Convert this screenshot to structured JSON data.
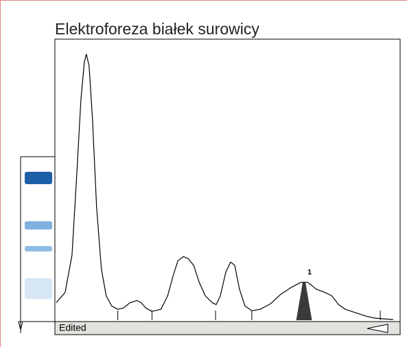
{
  "chart_data": {
    "type": "line",
    "title": "Elektroforeza białek surowicy",
    "status": "Edited",
    "x": [
      0,
      13,
      23,
      30,
      36,
      41,
      44,
      48,
      53,
      59,
      66,
      73,
      81,
      90,
      98,
      108,
      118,
      124,
      131,
      140,
      153,
      163,
      171,
      178,
      186,
      193,
      201,
      209,
      218,
      228,
      234,
      240,
      248,
      255,
      261,
      268,
      276,
      286,
      298,
      313,
      328,
      343,
      358,
      368,
      380,
      393,
      403,
      413,
      423,
      438,
      453,
      466,
      478,
      493
    ],
    "series": [
      {
        "color": "#000000",
        "values": [
          26,
          41,
          96,
          216,
          326,
          381,
          393,
          376,
          296,
          166,
          76,
          36,
          21,
          16,
          18,
          26,
          29,
          26,
          18,
          13,
          16,
          36,
          66,
          88,
          94,
          91,
          81,
          56,
          36,
          26,
          23,
          36,
          71,
          86,
          81,
          46,
          21,
          14,
          16,
          24,
          38,
          48,
          56,
          56,
          46,
          41,
          36,
          23,
          16,
          11,
          6,
          3,
          2,
          1
        ]
      }
    ],
    "xlim": [
      0,
      500
    ],
    "ylim": [
      0,
      400
    ],
    "dividers": [
      90,
      140,
      233,
      286,
      474
    ],
    "marked_peak": {
      "label": 1,
      "from": 351,
      "to": 374,
      "color": "#3a3a3a"
    }
  }
}
